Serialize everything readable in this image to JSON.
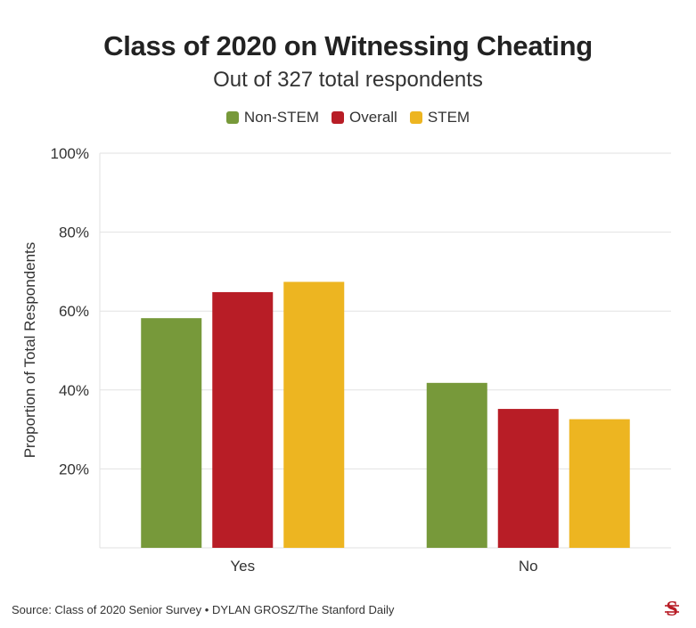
{
  "header": {
    "title": "Class of 2020 on Witnessing Cheating",
    "subtitle": "Out of 327 total respondents"
  },
  "footer": {
    "source": "Source: Class of 2020 Senior Survey • DYLAN GROSZ/The Stanford Daily"
  },
  "logo_icon": "stanford-daily-s-logo-icon",
  "chart_data": {
    "type": "bar",
    "title": "Class of 2020 on Witnessing Cheating",
    "subtitle": "Out of 327 total respondents",
    "xlabel": "",
    "ylabel": "Proportion of Total Respondents",
    "categories": [
      "Yes",
      "No"
    ],
    "series": [
      {
        "name": "Non-STEM",
        "color": "#77993a",
        "values": [
          58.2,
          41.8
        ]
      },
      {
        "name": "Overall",
        "color": "#b81d26",
        "values": [
          64.8,
          35.2
        ]
      },
      {
        "name": "STEM",
        "color": "#edb521",
        "values": [
          67.4,
          32.6
        ]
      }
    ],
    "ylim": [
      0,
      100
    ],
    "yticks": [
      20,
      40,
      60,
      80,
      100
    ],
    "ytick_labels": [
      "20%",
      "40%",
      "60%",
      "80%",
      "100%"
    ],
    "grid": true,
    "legend_position": "top-center"
  }
}
